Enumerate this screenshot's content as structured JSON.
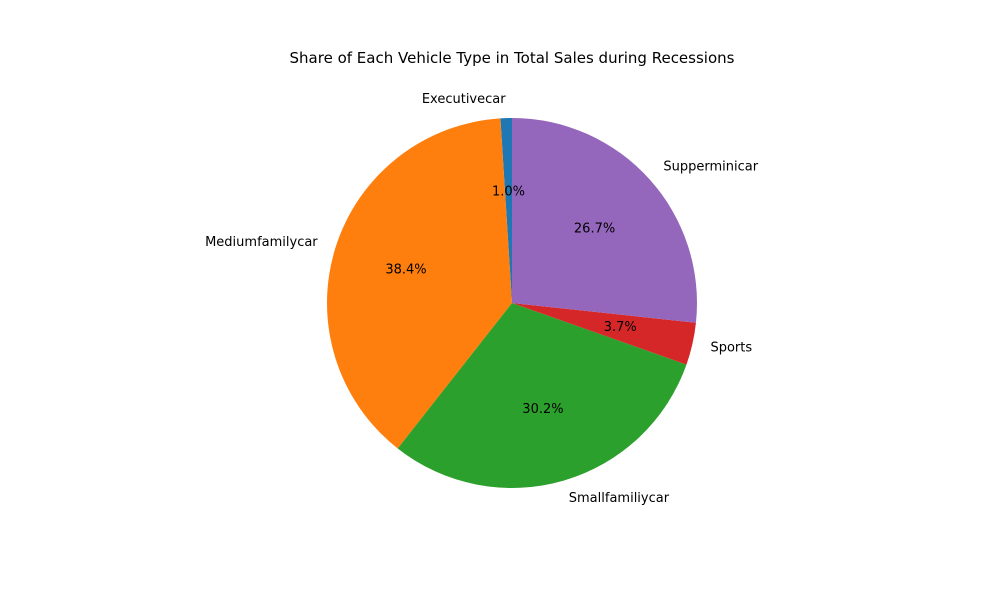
{
  "chart_data": {
    "type": "pie",
    "title": "Share of Each Vehicle Type in Total Sales during Recessions",
    "categories": [
      "Executivecar",
      "Mediumfamilycar",
      "Smallfamiliycar",
      "Sports",
      "Supperminicar"
    ],
    "values": [
      1.0,
      38.4,
      30.2,
      3.7,
      26.7
    ],
    "percent_labels": [
      "1.0%",
      "38.4%",
      "30.2%",
      "3.7%",
      "26.7%"
    ],
    "colors": [
      "#1f77b4",
      "#ff7f0e",
      "#2ca02c",
      "#d62728",
      "#9467bd"
    ],
    "start_angle_deg": 90,
    "direction": "counterclockwise",
    "legend": "none"
  }
}
